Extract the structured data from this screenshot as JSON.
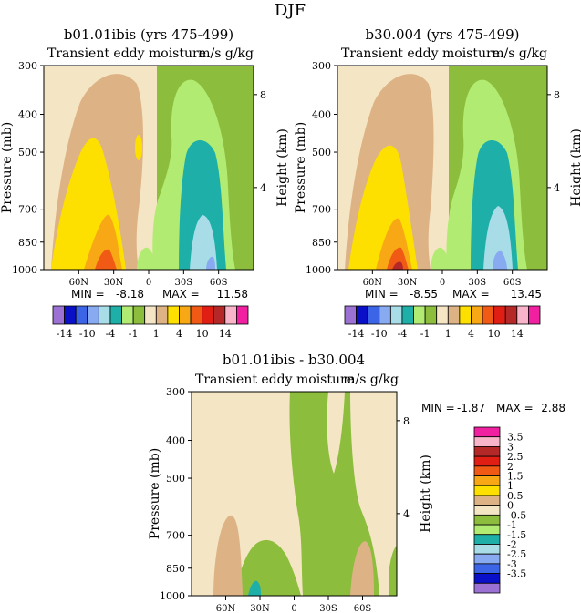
{
  "figure_title": "DJF",
  "colors": {
    "bg": "#f4e6c5",
    "n14": "#9b72d4",
    "n12": "#0a10c8",
    "n10": "#3c64e6",
    "n7": "#88aaf0",
    "n4": "#a8dde8",
    "n2": "#1eb0a8",
    "n1": "#b2eb72",
    "n05": "#8cbd3c",
    "p05": "#f4e6c5",
    "p1": "#ddb386",
    "p2": "#fde000",
    "p4": "#f8a814",
    "p7": "#f05a14",
    "p10": "#e01e14",
    "p12": "#b42828",
    "p14": "#f8b4c8",
    "p16": "#f020a0"
  },
  "top_labelbar": {
    "labels": [
      "-14",
      "-10",
      "-4",
      "-1",
      "1",
      "4",
      "10",
      "14"
    ]
  },
  "diff_labelbar": {
    "labels": [
      "3.5",
      "3",
      "2.5",
      "2",
      "1.5",
      "1",
      "0.5",
      "0",
      "-0.5",
      "-1",
      "-1.5",
      "-2",
      "-2.5",
      "-3",
      "-3.5"
    ]
  },
  "chart_data": [
    {
      "type": "heatmap",
      "title": "b01.01ibis (yrs 475-499)",
      "subtitle_left": "Transient eddy moisture",
      "subtitle_right": "m/s g/kg",
      "ylabel": "Pressure (mb)",
      "right_ylabel": "Height (km)",
      "x_ticks": [
        "60N",
        "30N",
        "0",
        "30S",
        "60S"
      ],
      "y_ticks": [
        "300",
        "400",
        "500",
        "700",
        "850",
        "1000"
      ],
      "right_ticks": [
        "8",
        "4"
      ],
      "min_label": "MIN =",
      "min_value": "-8.18",
      "max_label": "MAX =",
      "max_value": "11.58"
    },
    {
      "type": "heatmap",
      "title": "b30.004 (yrs 475-499)",
      "subtitle_left": "Transient eddy moisture",
      "subtitle_right": "m/s g/kg",
      "ylabel": "Pressure (mb)",
      "right_ylabel": "Height (km)",
      "x_ticks": [
        "60N",
        "30N",
        "0",
        "30S",
        "60S"
      ],
      "y_ticks": [
        "300",
        "400",
        "500",
        "700",
        "850",
        "1000"
      ],
      "right_ticks": [
        "8",
        "4"
      ],
      "min_label": "MIN =",
      "min_value": "-8.55",
      "max_label": "MAX =",
      "max_value": "13.45"
    },
    {
      "type": "heatmap",
      "title": "b01.01ibis - b30.004",
      "subtitle_left": "Transient eddy moisture",
      "subtitle_right": "m/s g/kg",
      "ylabel": "Pressure (mb)",
      "right_ylabel": "Height (km)",
      "x_ticks": [
        "60N",
        "30N",
        "0",
        "30S",
        "60S"
      ],
      "y_ticks": [
        "300",
        "400",
        "500",
        "700",
        "850",
        "1000"
      ],
      "right_ticks": [
        "8",
        "4"
      ],
      "min_label": "MIN =",
      "min_value": "-1.87",
      "max_label": "MAX =",
      "max_value": "2.88"
    }
  ]
}
